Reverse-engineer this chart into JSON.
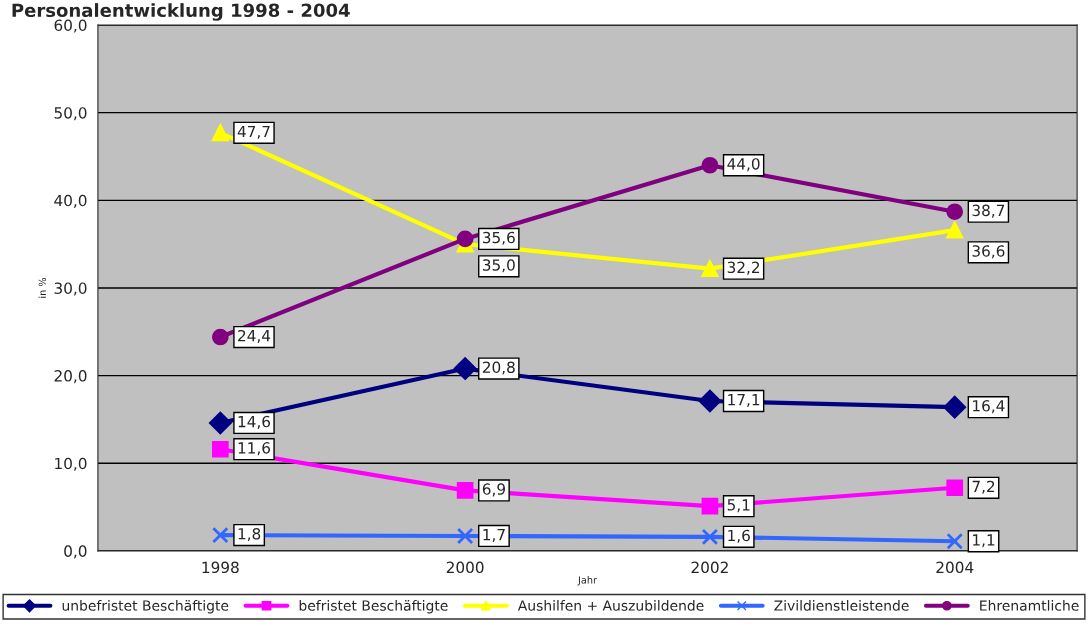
{
  "chart_data": {
    "type": "line",
    "title": "Personalentwicklung 1998 - 2004",
    "xlabel": "Jahr",
    "ylabel": "in %",
    "categories": [
      "1998",
      "2000",
      "2002",
      "2004"
    ],
    "series": [
      {
        "name": "unbefristet Beschäftigte",
        "color": "#000080",
        "marker": "diamond",
        "values": [
          14.6,
          20.8,
          17.1,
          16.4
        ],
        "value_labels": [
          "14,6",
          "20,8",
          "17,1",
          "16,4"
        ]
      },
      {
        "name": "befristet Beschäftigte",
        "color": "#ff00ff",
        "marker": "square",
        "values": [
          11.6,
          6.9,
          5.1,
          7.2
        ],
        "value_labels": [
          "11,6",
          "6,9",
          "5,1",
          "7,2"
        ]
      },
      {
        "name": "Aushilfen + Auszubildende",
        "color": "#ffff00",
        "marker": "triangle",
        "values": [
          47.7,
          35.0,
          32.2,
          36.6
        ],
        "value_labels": [
          "47,7",
          "35,0",
          "32,2",
          "36,6"
        ]
      },
      {
        "name": "Zivildienstleistende",
        "color": "#3366ff",
        "marker": "cross",
        "values": [
          1.8,
          1.7,
          1.6,
          1.1
        ],
        "value_labels": [
          "1,8",
          "1,7",
          "1,6",
          "1,1"
        ]
      },
      {
        "name": "Ehrenamtliche",
        "color": "#800080",
        "marker": "circle",
        "values": [
          24.4,
          35.6,
          44.0,
          38.7
        ],
        "value_labels": [
          "24,4",
          "35,6",
          "44,0",
          "38,7"
        ]
      }
    ],
    "ylim": [
      0,
      60
    ],
    "yticks": [
      {
        "value": 0,
        "label": "0,0"
      },
      {
        "value": 10,
        "label": "10,0"
      },
      {
        "value": 20,
        "label": "20,0"
      },
      {
        "value": 30,
        "label": "30,0"
      },
      {
        "value": 40,
        "label": "40,0"
      },
      {
        "value": 50,
        "label": "50,0"
      },
      {
        "value": 60,
        "label": "60,0"
      }
    ],
    "grid": "y",
    "legend": "bottom"
  }
}
